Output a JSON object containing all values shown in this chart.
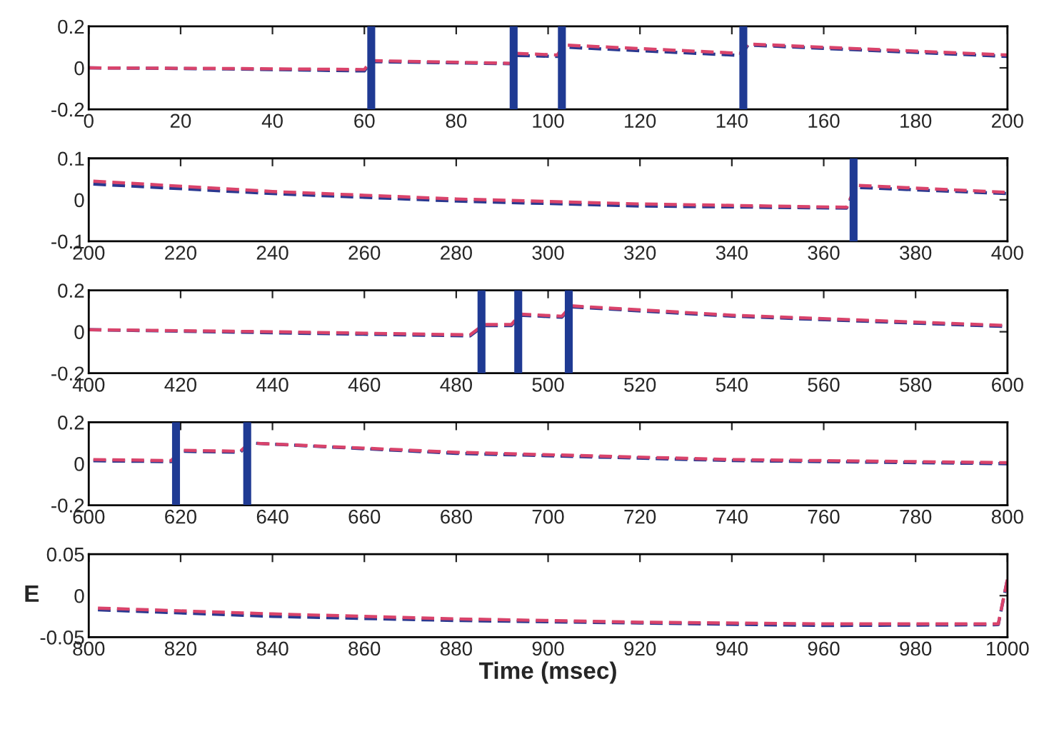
{
  "chart_data": [
    {
      "type": "line",
      "line_style": "dashed",
      "marker": "none",
      "grid": false,
      "legend": false,
      "xlim": [
        0,
        200
      ],
      "xticks": [
        0,
        20,
        40,
        60,
        80,
        100,
        120,
        140,
        160,
        180,
        200
      ],
      "ylim": [
        -0.2,
        0.2
      ],
      "yticks": [
        -0.2,
        0,
        0.2
      ],
      "x": [
        0,
        30,
        60,
        61.5,
        92,
        93,
        102,
        103.5,
        142,
        143.5,
        200
      ],
      "series": [
        {
          "color": "#2a3890",
          "values": [
            0,
            -0.005,
            -0.015,
            0.03,
            0.02,
            0.06,
            0.055,
            0.1,
            0.06,
            0.11,
            0.055
          ]
        },
        {
          "color": "#d9436b",
          "values": [
            0,
            -0.003,
            -0.008,
            0.035,
            0.022,
            0.07,
            0.062,
            0.11,
            0.07,
            0.115,
            0.062
          ]
        }
      ],
      "ref_lines": [
        {
          "axis": "x",
          "value": 61.5,
          "color": "#1f3a93"
        },
        {
          "axis": "x",
          "value": 92.5,
          "color": "#1f3a93"
        },
        {
          "axis": "x",
          "value": 103,
          "color": "#1f3a93"
        },
        {
          "axis": "x",
          "value": 142.5,
          "color": "#1f3a93"
        }
      ]
    },
    {
      "type": "line",
      "line_style": "dashed",
      "marker": "none",
      "grid": false,
      "legend": false,
      "xlim": [
        200,
        400
      ],
      "xticks": [
        200,
        220,
        240,
        260,
        280,
        300,
        320,
        340,
        360,
        380,
        400
      ],
      "ylim": [
        -0.1,
        0.1
      ],
      "yticks": [
        -0.1,
        0,
        0.1
      ],
      "x": [
        201,
        240,
        280,
        320,
        365,
        367,
        400
      ],
      "series": [
        {
          "color": "#2a3890",
          "values": [
            0.038,
            0.015,
            -0.003,
            -0.015,
            -0.02,
            0.03,
            0.015
          ]
        },
        {
          "color": "#d9436b",
          "values": [
            0.045,
            0.02,
            0.002,
            -0.01,
            -0.018,
            0.035,
            0.018
          ]
        }
      ],
      "ref_lines": [
        {
          "axis": "x",
          "value": 366.5,
          "color": "#1f3a93"
        }
      ]
    },
    {
      "type": "line",
      "line_style": "dashed",
      "marker": "none",
      "grid": false,
      "legend": false,
      "xlim": [
        400,
        600
      ],
      "xticks": [
        400,
        420,
        440,
        460,
        480,
        500,
        520,
        540,
        560,
        580,
        600
      ],
      "ylim": [
        -0.2,
        0.2
      ],
      "yticks": [
        -0.2,
        0,
        0.2
      ],
      "x": [
        400,
        440,
        483,
        486,
        492,
        494,
        503,
        505,
        540,
        600
      ],
      "series": [
        {
          "color": "#2a3890",
          "values": [
            0.01,
            -0.005,
            -0.02,
            0.03,
            0.03,
            0.08,
            0.07,
            0.12,
            0.075,
            0.025
          ]
        },
        {
          "color": "#d9436b",
          "values": [
            0.01,
            0,
            -0.015,
            0.035,
            0.035,
            0.085,
            0.075,
            0.125,
            0.08,
            0.03
          ]
        }
      ],
      "ref_lines": [
        {
          "axis": "x",
          "value": 485.5,
          "color": "#1f3a93"
        },
        {
          "axis": "x",
          "value": 493.5,
          "color": "#1f3a93"
        },
        {
          "axis": "x",
          "value": 504.5,
          "color": "#1f3a93"
        }
      ]
    },
    {
      "type": "line",
      "line_style": "dashed",
      "marker": "none",
      "grid": false,
      "legend": false,
      "xlim": [
        600,
        800
      ],
      "xticks": [
        600,
        620,
        640,
        660,
        680,
        700,
        720,
        740,
        760,
        780,
        800
      ],
      "ylim": [
        -0.2,
        0.2
      ],
      "yticks": [
        -0.2,
        0,
        0.2
      ],
      "x": [
        601,
        618,
        620,
        633,
        635,
        680,
        740,
        800
      ],
      "series": [
        {
          "color": "#2a3890",
          "values": [
            0.014,
            0.01,
            0.06,
            0.055,
            0.1,
            0.05,
            0.015,
            0
          ]
        },
        {
          "color": "#d9436b",
          "values": [
            0.02,
            0.015,
            0.065,
            0.06,
            0.1,
            0.055,
            0.02,
            0.005
          ]
        }
      ],
      "ref_lines": [
        {
          "axis": "x",
          "value": 619,
          "color": "#1f3a93"
        },
        {
          "axis": "x",
          "value": 634.5,
          "color": "#1f3a93"
        }
      ]
    },
    {
      "type": "line",
      "line_style": "dashed",
      "marker": "none",
      "grid": false,
      "legend": false,
      "xlim": [
        800,
        1000
      ],
      "xticks": [
        800,
        820,
        840,
        860,
        880,
        900,
        920,
        940,
        960,
        980,
        1000
      ],
      "ylim": [
        -0.05,
        0.05
      ],
      "yticks": [
        -0.05,
        0,
        0.05
      ],
      "ylabel": "E",
      "xlabel": "Time (msec)",
      "x": [
        802,
        840,
        880,
        920,
        960,
        998,
        1000
      ],
      "series": [
        {
          "color": "#2a3890",
          "values": [
            -0.017,
            -0.025,
            -0.03,
            -0.033,
            -0.036,
            -0.035,
            0.02
          ]
        },
        {
          "color": "#d9436b",
          "values": [
            -0.015,
            -0.022,
            -0.028,
            -0.032,
            -0.034,
            -0.034,
            0.02
          ]
        }
      ]
    }
  ]
}
